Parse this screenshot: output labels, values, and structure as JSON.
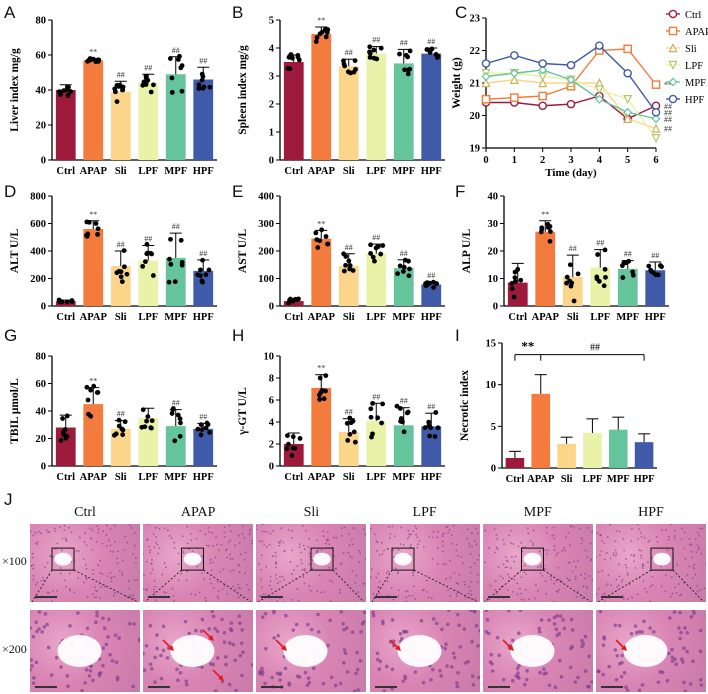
{
  "colors": {
    "Ctrl": "#9e1a3c",
    "APAP": "#f47b3e",
    "Sli": "#fad58a",
    "LPF": "#e8f2a8",
    "MPF": "#66c49d",
    "HPF": "#3f5aa8"
  },
  "groups": [
    "Ctrl",
    "APAP",
    "Sli",
    "LPF",
    "MPF",
    "HPF"
  ],
  "panel_letters": [
    "A",
    "B",
    "C",
    "D",
    "E",
    "F",
    "G",
    "H",
    "I",
    "J"
  ],
  "chart_data": [
    {
      "id": "A",
      "type": "bar",
      "ylabel": "Liver index mg/g",
      "ylim": [
        0,
        80
      ],
      "yticks": [
        0,
        20,
        40,
        60,
        80
      ],
      "categories": [
        "Ctrl",
        "APAP",
        "Sli",
        "LPF",
        "MPF",
        "HPF"
      ],
      "values": [
        40,
        57,
        39,
        44,
        49,
        46
      ],
      "errors": [
        3,
        1,
        6,
        5,
        10,
        7
      ],
      "annotations": [
        "",
        "**",
        "##",
        "##",
        "##",
        "##"
      ]
    },
    {
      "id": "B",
      "type": "bar",
      "ylabel": "Spleen index mg/g",
      "ylim": [
        0,
        5
      ],
      "yticks": [
        0,
        1,
        2,
        3,
        4,
        5
      ],
      "categories": [
        "Ctrl",
        "APAP",
        "Sli",
        "LPF",
        "MPF",
        "HPF"
      ],
      "values": [
        3.5,
        4.5,
        3.35,
        3.8,
        3.45,
        3.8
      ],
      "errors": [
        0.25,
        0.25,
        0.25,
        0.25,
        0.5,
        0.2
      ],
      "annotations": [
        "",
        "**",
        "##",
        "##",
        "##",
        "##"
      ]
    },
    {
      "id": "C",
      "type": "line",
      "ylabel": "Weight (g)",
      "xlabel": "Time (day)",
      "ylim": [
        19,
        23
      ],
      "yticks": [
        19,
        20,
        21,
        22,
        23
      ],
      "x": [
        0,
        1,
        2,
        3,
        4,
        5,
        6
      ],
      "series": [
        {
          "name": "Ctrl",
          "values": [
            20.4,
            20.4,
            20.3,
            20.35,
            20.6,
            19.9,
            20.3
          ]
        },
        {
          "name": "APAP",
          "values": [
            20.5,
            20.55,
            20.6,
            20.9,
            22.0,
            22.05,
            20.95
          ]
        },
        {
          "name": "Sli",
          "values": [
            21.0,
            21.1,
            21.0,
            21.0,
            21.0,
            19.9,
            19.6
          ]
        },
        {
          "name": "LPF",
          "values": [
            21.3,
            21.3,
            21.2,
            21.1,
            20.8,
            20.5,
            19.3
          ]
        },
        {
          "name": "MPF",
          "values": [
            21.2,
            21.3,
            21.4,
            21.1,
            20.5,
            20.1,
            19.9
          ]
        },
        {
          "name": "HPF",
          "values": [
            21.6,
            21.85,
            21.6,
            21.55,
            22.15,
            21.3,
            20.1
          ]
        }
      ],
      "annotations": [
        "**",
        "##",
        "##",
        "##",
        "##"
      ]
    },
    {
      "id": "D",
      "type": "bar",
      "ylabel": "ALT U/L",
      "ylim": [
        0,
        800
      ],
      "yticks": [
        0,
        200,
        400,
        600,
        800
      ],
      "categories": [
        "Ctrl",
        "APAP",
        "Sli",
        "LPF",
        "MPF",
        "HPF"
      ],
      "values": [
        35,
        560,
        290,
        330,
        350,
        255
      ],
      "errors": [
        8,
        60,
        110,
        110,
        180,
        80
      ],
      "annotations": [
        "",
        "**",
        "##",
        "##",
        "##",
        "##"
      ]
    },
    {
      "id": "E",
      "type": "bar",
      "ylabel": "AST U/L",
      "ylim": [
        0,
        400
      ],
      "yticks": [
        0,
        100,
        200,
        300,
        400
      ],
      "categories": [
        "Ctrl",
        "APAP",
        "Sli",
        "LPF",
        "MPF",
        "HPF"
      ],
      "values": [
        18,
        245,
        145,
        190,
        138,
        78
      ],
      "errors": [
        8,
        30,
        45,
        35,
        30,
        10
      ],
      "annotations": [
        "",
        "**",
        "##",
        "##",
        "##",
        "##"
      ]
    },
    {
      "id": "F",
      "type": "bar",
      "ylabel": "ALP U/L",
      "ylim": [
        0,
        40
      ],
      "yticks": [
        0,
        10,
        20,
        30,
        40
      ],
      "categories": [
        "Ctrl",
        "APAP",
        "Sli",
        "LPF",
        "MPF",
        "HPF"
      ],
      "values": [
        8.5,
        27,
        10.5,
        14,
        13.5,
        13
      ],
      "errors": [
        7,
        4,
        8,
        6.5,
        3,
        3
      ],
      "annotations": [
        "",
        "**",
        "##",
        "##",
        "##",
        "##"
      ]
    },
    {
      "id": "G",
      "type": "bar",
      "ylabel": "TBIL μmol/L",
      "ylim": [
        0,
        80
      ],
      "yticks": [
        0,
        20,
        40,
        60,
        80
      ],
      "categories": [
        "Ctrl",
        "APAP",
        "Sli",
        "LPF",
        "MPF",
        "HPF"
      ],
      "values": [
        28,
        45,
        27,
        35,
        29,
        27
      ],
      "errors": [
        9,
        12,
        6,
        7,
        12,
        4
      ],
      "annotations": [
        "",
        "**",
        "##",
        "",
        "##",
        "##"
      ]
    },
    {
      "id": "H",
      "type": "bar",
      "ylabel": "γ-GT U/L",
      "ylim": [
        0,
        10
      ],
      "yticks": [
        0,
        2,
        4,
        6,
        8,
        10
      ],
      "categories": [
        "Ctrl",
        "APAP",
        "Sli",
        "LPF",
        "MPF",
        "HPF"
      ],
      "values": [
        2,
        7.1,
        3.1,
        4.1,
        3.7,
        3.6
      ],
      "errors": [
        1,
        1.2,
        1.2,
        1.6,
        1.6,
        1.2
      ],
      "annotations": [
        "",
        "**",
        "##",
        "##",
        "##",
        "##"
      ]
    },
    {
      "id": "I",
      "type": "bar",
      "ylabel": "Necrotic index",
      "ylim": [
        0,
        15
      ],
      "yticks": [
        0,
        5,
        10,
        15
      ],
      "categories": [
        "Ctrl",
        "APAP",
        "Sli",
        "LPF",
        "MPF",
        "HPF"
      ],
      "values": [
        1.2,
        8.9,
        2.9,
        4.2,
        4.6,
        3.1
      ],
      "errors": [
        0.8,
        2.3,
        0.8,
        1.7,
        1.5,
        1.0
      ],
      "annotations": [
        "**",
        "##"
      ]
    }
  ],
  "histology": {
    "columns": [
      "Ctrl",
      "APAP",
      "Sli",
      "LPF",
      "MPF",
      "HPF"
    ],
    "rows": [
      "×100",
      "×200"
    ]
  }
}
